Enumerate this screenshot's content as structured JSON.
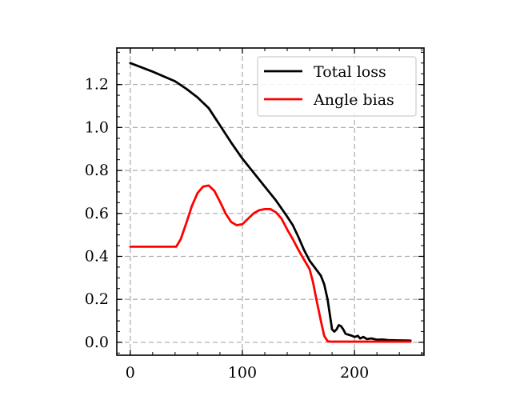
{
  "chart_data": {
    "type": "line",
    "title": "",
    "xlabel": "",
    "ylabel": "",
    "xlim": [
      -12,
      262
    ],
    "ylim": [
      -0.06,
      1.37
    ],
    "x_ticks": [
      0,
      100,
      200
    ],
    "x_tick_labels": [
      "0",
      "100",
      "200"
    ],
    "y_ticks": [
      0.0,
      0.2,
      0.4,
      0.6,
      0.8,
      1.0,
      1.2
    ],
    "y_tick_labels": [
      "0.0",
      "0.2",
      "0.4",
      "0.6",
      "0.8",
      "1.0",
      "1.2"
    ],
    "grid": true,
    "grid_style": "dashed",
    "legend_position": "upper right",
    "series": [
      {
        "name": "Total loss",
        "color": "#000000",
        "x": [
          0,
          20,
          40,
          50,
          60,
          70,
          75,
          80,
          90,
          100,
          110,
          120,
          130,
          140,
          145,
          150,
          155,
          160,
          165,
          170,
          173,
          176,
          178,
          180,
          182,
          184,
          186,
          188,
          190,
          192,
          195,
          198,
          200,
          203,
          205,
          208,
          211,
          215,
          220,
          225,
          230,
          240,
          250
        ],
        "y": [
          1.3,
          1.26,
          1.215,
          1.18,
          1.14,
          1.09,
          1.05,
          1.01,
          0.93,
          0.855,
          0.79,
          0.725,
          0.66,
          0.585,
          0.545,
          0.49,
          0.43,
          0.38,
          0.345,
          0.31,
          0.27,
          0.2,
          0.13,
          0.06,
          0.05,
          0.06,
          0.08,
          0.075,
          0.06,
          0.04,
          0.035,
          0.03,
          0.025,
          0.03,
          0.018,
          0.025,
          0.015,
          0.018,
          0.012,
          0.013,
          0.01,
          0.009,
          0.008
        ]
      },
      {
        "name": "Angle bias",
        "color": "#ff0000",
        "x": [
          0,
          20,
          35,
          41,
          45,
          50,
          55,
          60,
          65,
          70,
          75,
          80,
          85,
          90,
          95,
          100,
          105,
          110,
          115,
          120,
          125,
          130,
          135,
          140,
          145,
          150,
          155,
          160,
          163,
          166,
          170,
          173,
          176,
          179,
          182,
          190,
          200,
          250
        ],
        "y": [
          0.445,
          0.445,
          0.445,
          0.445,
          0.48,
          0.555,
          0.635,
          0.695,
          0.725,
          0.73,
          0.705,
          0.655,
          0.6,
          0.56,
          0.545,
          0.55,
          0.575,
          0.6,
          0.615,
          0.62,
          0.62,
          0.605,
          0.575,
          0.525,
          0.48,
          0.43,
          0.385,
          0.34,
          0.28,
          0.2,
          0.1,
          0.03,
          0.005,
          0.003,
          0.003,
          0.003,
          0.003,
          0.003
        ]
      }
    ]
  }
}
